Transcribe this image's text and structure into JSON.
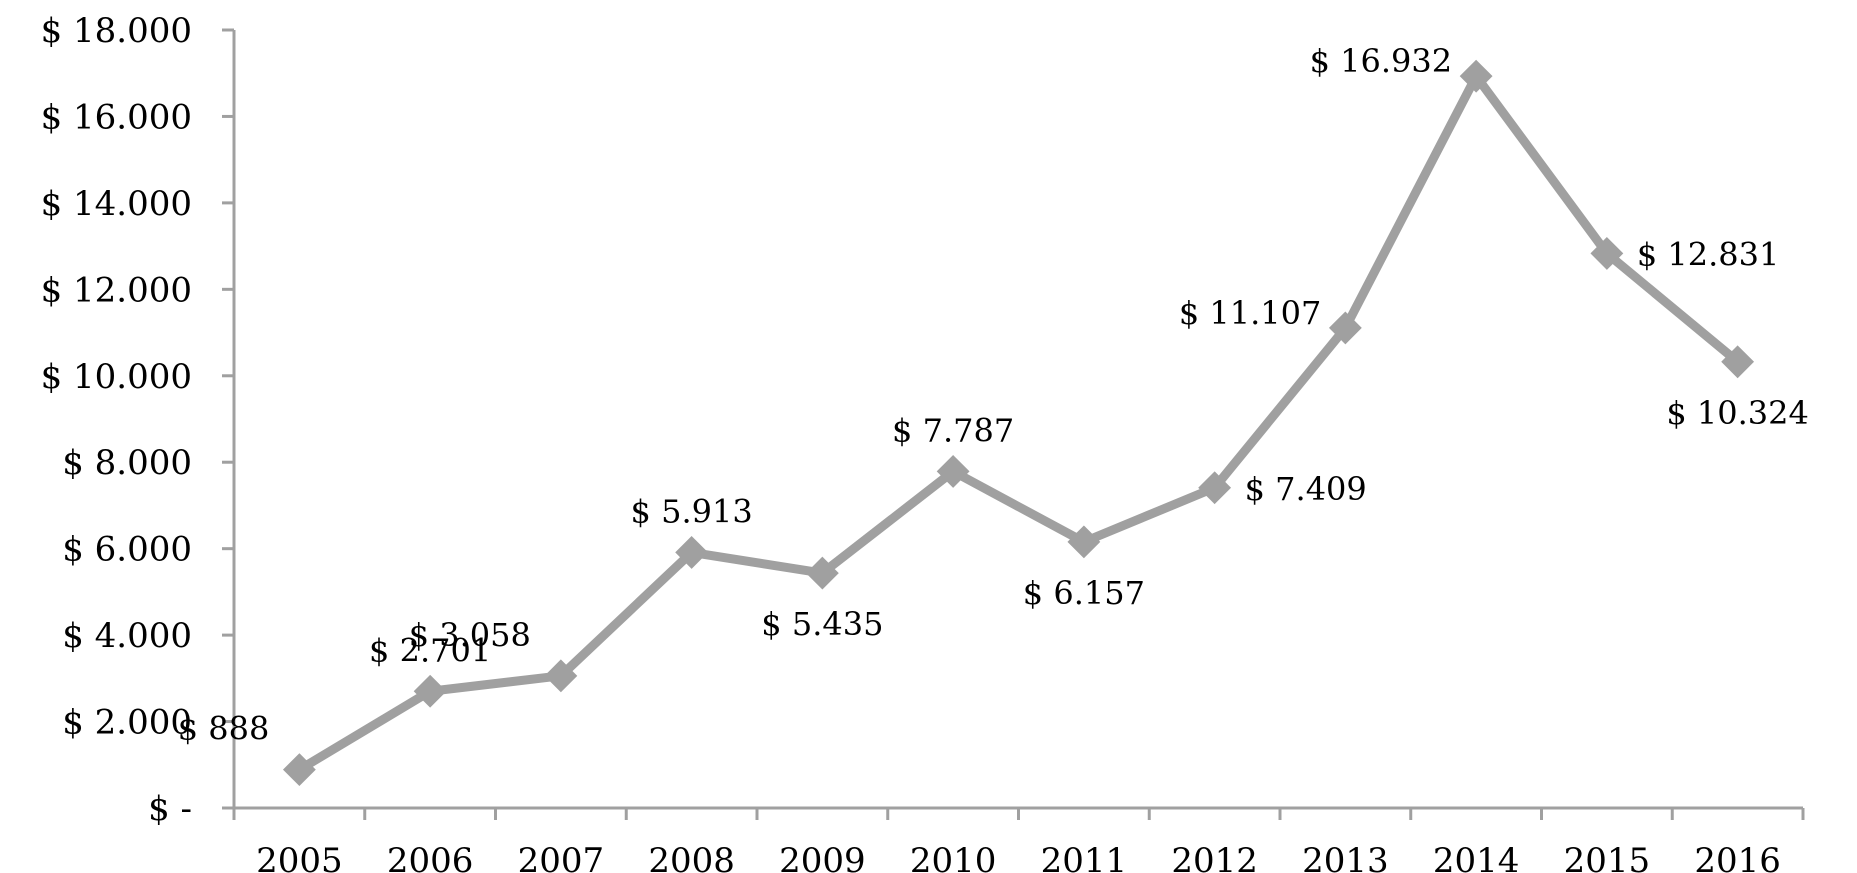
{
  "chart_data": {
    "type": "line",
    "title": "",
    "xlabel": "",
    "ylabel": "",
    "categories": [
      "2005",
      "2006",
      "2007",
      "2008",
      "2009",
      "2010",
      "2011",
      "2012",
      "2013",
      "2014",
      "2015",
      "2016"
    ],
    "series": [
      {
        "values": [
          888,
          2701,
          3058,
          5913,
          5435,
          7787,
          6157,
          7409,
          11107,
          16932,
          12831,
          10324
        ],
        "labels": [
          "$ 888",
          "$ 2.701",
          "$ 3.058",
          "$ 5.913",
          "$ 5.435",
          "$ 7.787",
          "$ 6.157",
          "$ 7.409",
          "$ 11.107",
          "$ 16.932",
          "$ 12.831",
          "$ 10.324"
        ],
        "label_positions": [
          "above-left",
          "above",
          "above-left",
          "above",
          "below",
          "above",
          "below",
          "right",
          "left",
          "left",
          "right",
          "below"
        ],
        "color": "#a0a0a0",
        "marker": "diamond"
      }
    ],
    "ylim": [
      0,
      18000
    ],
    "y_ticks": [
      0,
      2000,
      4000,
      6000,
      8000,
      10000,
      12000,
      14000,
      16000,
      18000
    ],
    "y_tick_labels": [
      "$ -",
      "$ 2.000",
      "$ 4.000",
      "$ 6.000",
      "$ 8.000",
      "$ 10.000",
      "$ 12.000",
      "$ 14.000",
      "$ 16.000",
      "$ 18.000"
    ],
    "grid": false,
    "legend": "none",
    "axis_color": "#a0a0a0"
  }
}
